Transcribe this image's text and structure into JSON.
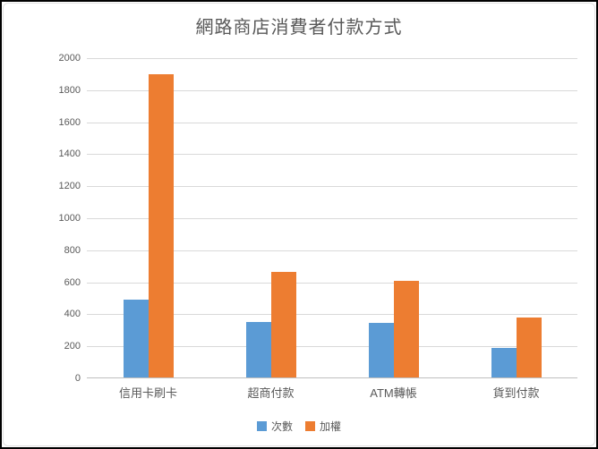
{
  "chart_data": {
    "type": "bar",
    "title": "網路商店消費者付款方式",
    "categories": [
      "信用卡刷卡",
      "超商付款",
      "ATM轉帳",
      "貨到付款"
    ],
    "series": [
      {
        "name": "次數",
        "color": "#5B9BD5",
        "values": [
          490,
          350,
          345,
          190
        ]
      },
      {
        "name": "加權",
        "color": "#ED7D31",
        "values": [
          1900,
          665,
          610,
          380
        ]
      }
    ],
    "xlabel": "",
    "ylabel": "",
    "ylim": [
      0,
      2000
    ],
    "ytick_step": 200,
    "yticks": [
      0,
      200,
      400,
      600,
      800,
      1000,
      1200,
      1400,
      1600,
      1800,
      2000
    ],
    "grid": true,
    "legend_position": "bottom",
    "grid_color": "#D9D9D9",
    "axis_color": "#BFBFBF",
    "text_color": "#595959",
    "background_color": "#FFFFFF"
  }
}
